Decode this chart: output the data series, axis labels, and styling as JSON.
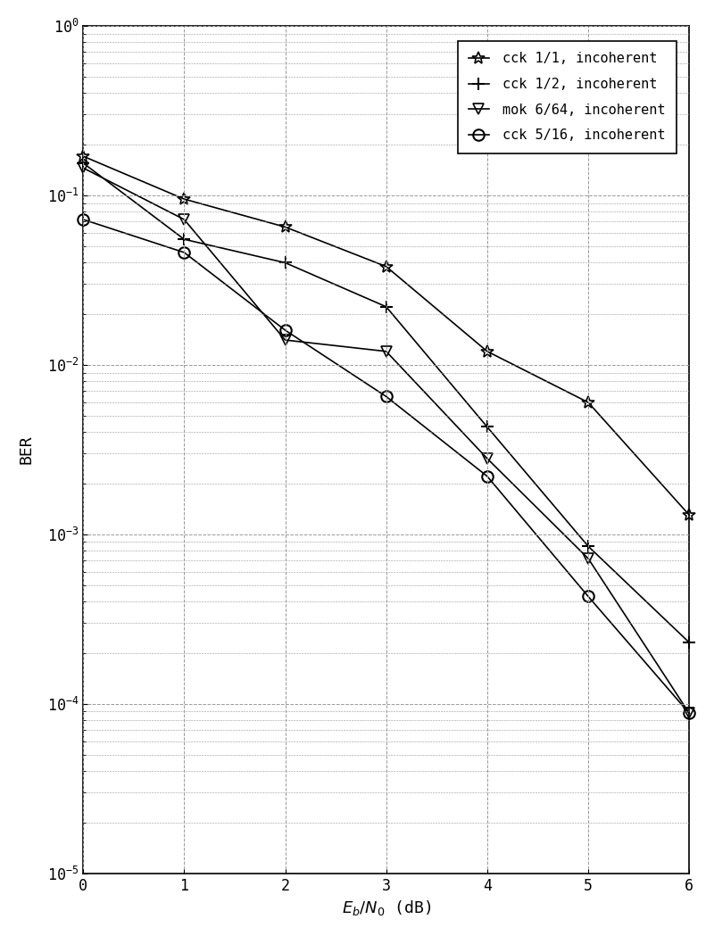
{
  "title": "",
  "xlabel": "$E_b/N_0$ (dB)",
  "ylabel": "BER",
  "xlim": [
    0,
    6
  ],
  "ylim_log": [
    -5,
    0
  ],
  "x": [
    0,
    1,
    2,
    3,
    4,
    5,
    6
  ],
  "cck_1_1": [
    0.17,
    0.095,
    0.065,
    0.038,
    0.012,
    0.006,
    0.0013
  ],
  "cck_1_2": [
    0.155,
    0.055,
    0.04,
    0.022,
    0.0043,
    0.00085,
    0.00023
  ],
  "mok_6_64": [
    0.145,
    0.072,
    0.014,
    0.012,
    0.0028,
    0.00072,
    8.8e-05
  ],
  "cck_5_16": [
    0.072,
    0.046,
    0.016,
    0.0065,
    0.0022,
    0.00043,
    8.8e-05
  ],
  "legend": [
    "cck 1/1, incoherent",
    "cck 1/2, incoherent",
    "mok 6/64, incoherent",
    "cck 5/16, incoherent"
  ],
  "markers": [
    "*",
    "+",
    "v",
    "o"
  ],
  "line_color": "#000000",
  "bg_color": "#ffffff",
  "grid_color": "#999999"
}
